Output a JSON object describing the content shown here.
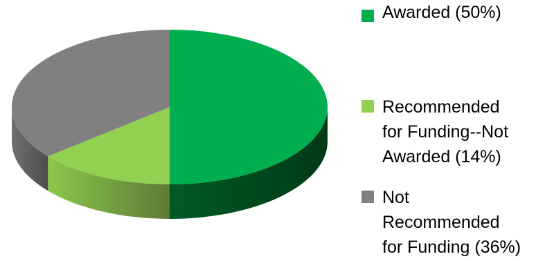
{
  "chart_data": {
    "type": "pie",
    "style": "3d",
    "title": "",
    "categories": [
      "Awarded (50%)",
      "Recommended\nfor Funding--Not\nAwarded (14%)",
      "Not\nRecommended\nfor Funding (36%)"
    ],
    "values": [
      50,
      14,
      36
    ],
    "colors": [
      "#00ad4f",
      "#92d050",
      "#808080"
    ],
    "legend_position": "right"
  }
}
